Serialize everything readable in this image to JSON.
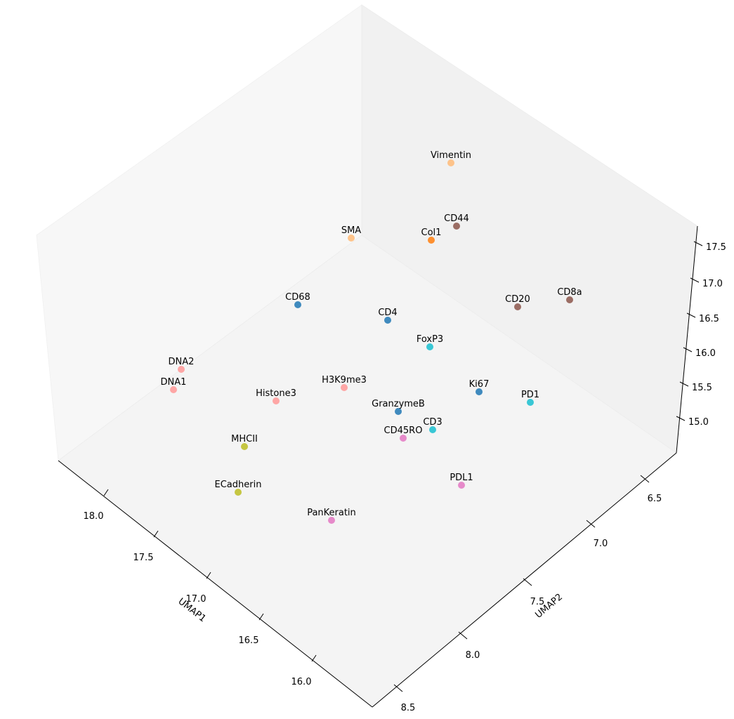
{
  "chart_data": {
    "type": "scatter",
    "projection": "3d",
    "xlabel": "UMAP1",
    "ylabel": "UMAP2",
    "zlabel": "",
    "x_ticks": [
      "18.0",
      "17.5",
      "17.0",
      "16.5",
      "16.0"
    ],
    "y_ticks": [
      "6.5",
      "7.0",
      "7.5",
      "8.0",
      "8.5"
    ],
    "z_ticks": [
      "15.0",
      "15.5",
      "16.0",
      "16.5",
      "17.0",
      "17.5"
    ],
    "grid": false,
    "points": [
      {
        "label": "Vimentin",
        "x": 16.3,
        "y": 6.0,
        "z": 17.7,
        "color": "#ffbb78"
      },
      {
        "label": "CD44",
        "x": 16.1,
        "y": 6.3,
        "z": 17.0,
        "color": "#8c564b"
      },
      {
        "label": "Col1",
        "x": 16.5,
        "y": 6.2,
        "z": 17.3,
        "color": "#ff7f0e"
      },
      {
        "label": "SMA",
        "x": 17.1,
        "y": 5.9,
        "z": 17.5,
        "color": "#ffbb78"
      },
      {
        "label": "CD8a",
        "x": 15.4,
        "y": 6.9,
        "z": 16.5,
        "color": "#8c564b"
      },
      {
        "label": "CD20",
        "x": 15.8,
        "y": 6.8,
        "z": 16.5,
        "color": "#8c564b"
      },
      {
        "label": "CD68",
        "x": 17.3,
        "y": 6.4,
        "z": 16.7,
        "color": "#1f77b4"
      },
      {
        "label": "CD4",
        "x": 16.6,
        "y": 6.8,
        "z": 16.6,
        "color": "#1f77b4"
      },
      {
        "label": "FoxP3",
        "x": 16.3,
        "y": 7.1,
        "z": 16.3,
        "color": "#17becf"
      },
      {
        "label": "DNA2",
        "x": 18.1,
        "y": 6.7,
        "z": 15.6,
        "color": "#ff9896"
      },
      {
        "label": "DNA1",
        "x": 18.2,
        "y": 6.8,
        "z": 15.4,
        "color": "#ff9896"
      },
      {
        "label": "H3K9me3",
        "x": 16.9,
        "y": 7.2,
        "z": 15.8,
        "color": "#ff9896"
      },
      {
        "label": "Histone3",
        "x": 17.4,
        "y": 7.1,
        "z": 15.6,
        "color": "#ff9896"
      },
      {
        "label": "Ki67",
        "x": 16.0,
        "y": 7.5,
        "z": 16.0,
        "color": "#1f77b4"
      },
      {
        "label": "PD1",
        "x": 15.6,
        "y": 7.4,
        "z": 16.2,
        "color": "#17becf"
      },
      {
        "label": "GranzymeB",
        "x": 16.7,
        "y": 7.5,
        "z": 15.6,
        "color": "#1f77b4"
      },
      {
        "label": "CD3",
        "x": 16.5,
        "y": 7.6,
        "z": 15.6,
        "color": "#17becf"
      },
      {
        "label": "CD45RO",
        "x": 16.8,
        "y": 7.6,
        "z": 15.4,
        "color": "#e377c2"
      },
      {
        "label": "MHCII",
        "x": 17.7,
        "y": 7.4,
        "z": 15.1,
        "color": "#bcbd22"
      },
      {
        "label": "ECadherin",
        "x": 17.6,
        "y": 7.8,
        "z": 14.7,
        "color": "#bcbd22"
      },
      {
        "label": "PDL1",
        "x": 16.4,
        "y": 8.1,
        "z": 15.1,
        "color": "#e377c2"
      },
      {
        "label": "PanKeratin",
        "x": 17.1,
        "y": 8.2,
        "z": 14.6,
        "color": "#e377c2"
      }
    ]
  }
}
